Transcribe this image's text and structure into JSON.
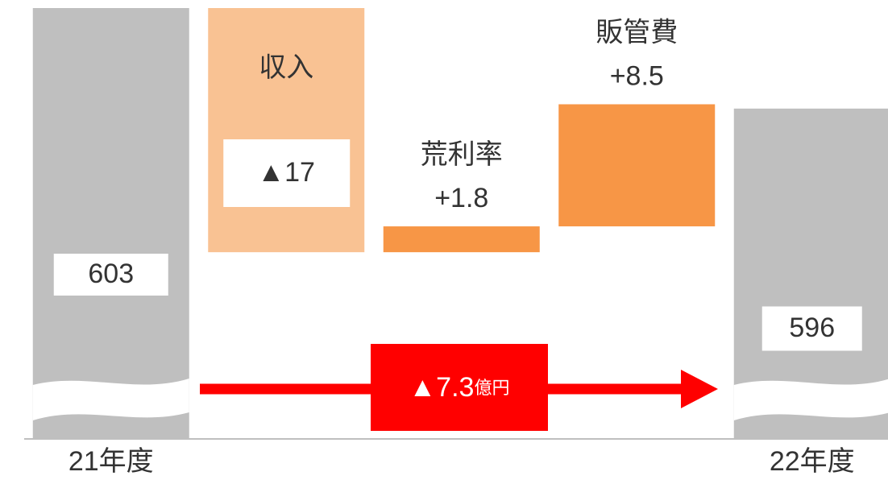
{
  "chart_data": {
    "type": "waterfall",
    "categories": [
      "21年度",
      "収入",
      "荒利率",
      "販管費",
      "22年度"
    ],
    "measures": [
      "absolute",
      "relative",
      "relative",
      "relative",
      "total"
    ],
    "values": [
      603,
      -17,
      1.8,
      8.5,
      596
    ],
    "value_labels": [
      "603",
      "▲17",
      "+1.8",
      "+8.5",
      "596"
    ],
    "colors": [
      "#bfbfbf",
      "#f9c293",
      "#f79646",
      "#f79646",
      "#bfbfbf"
    ],
    "ylim": [
      573,
      603
    ],
    "annotation": {
      "text": "▲7.3",
      "unit": "億円",
      "color": "#ff0000"
    }
  }
}
